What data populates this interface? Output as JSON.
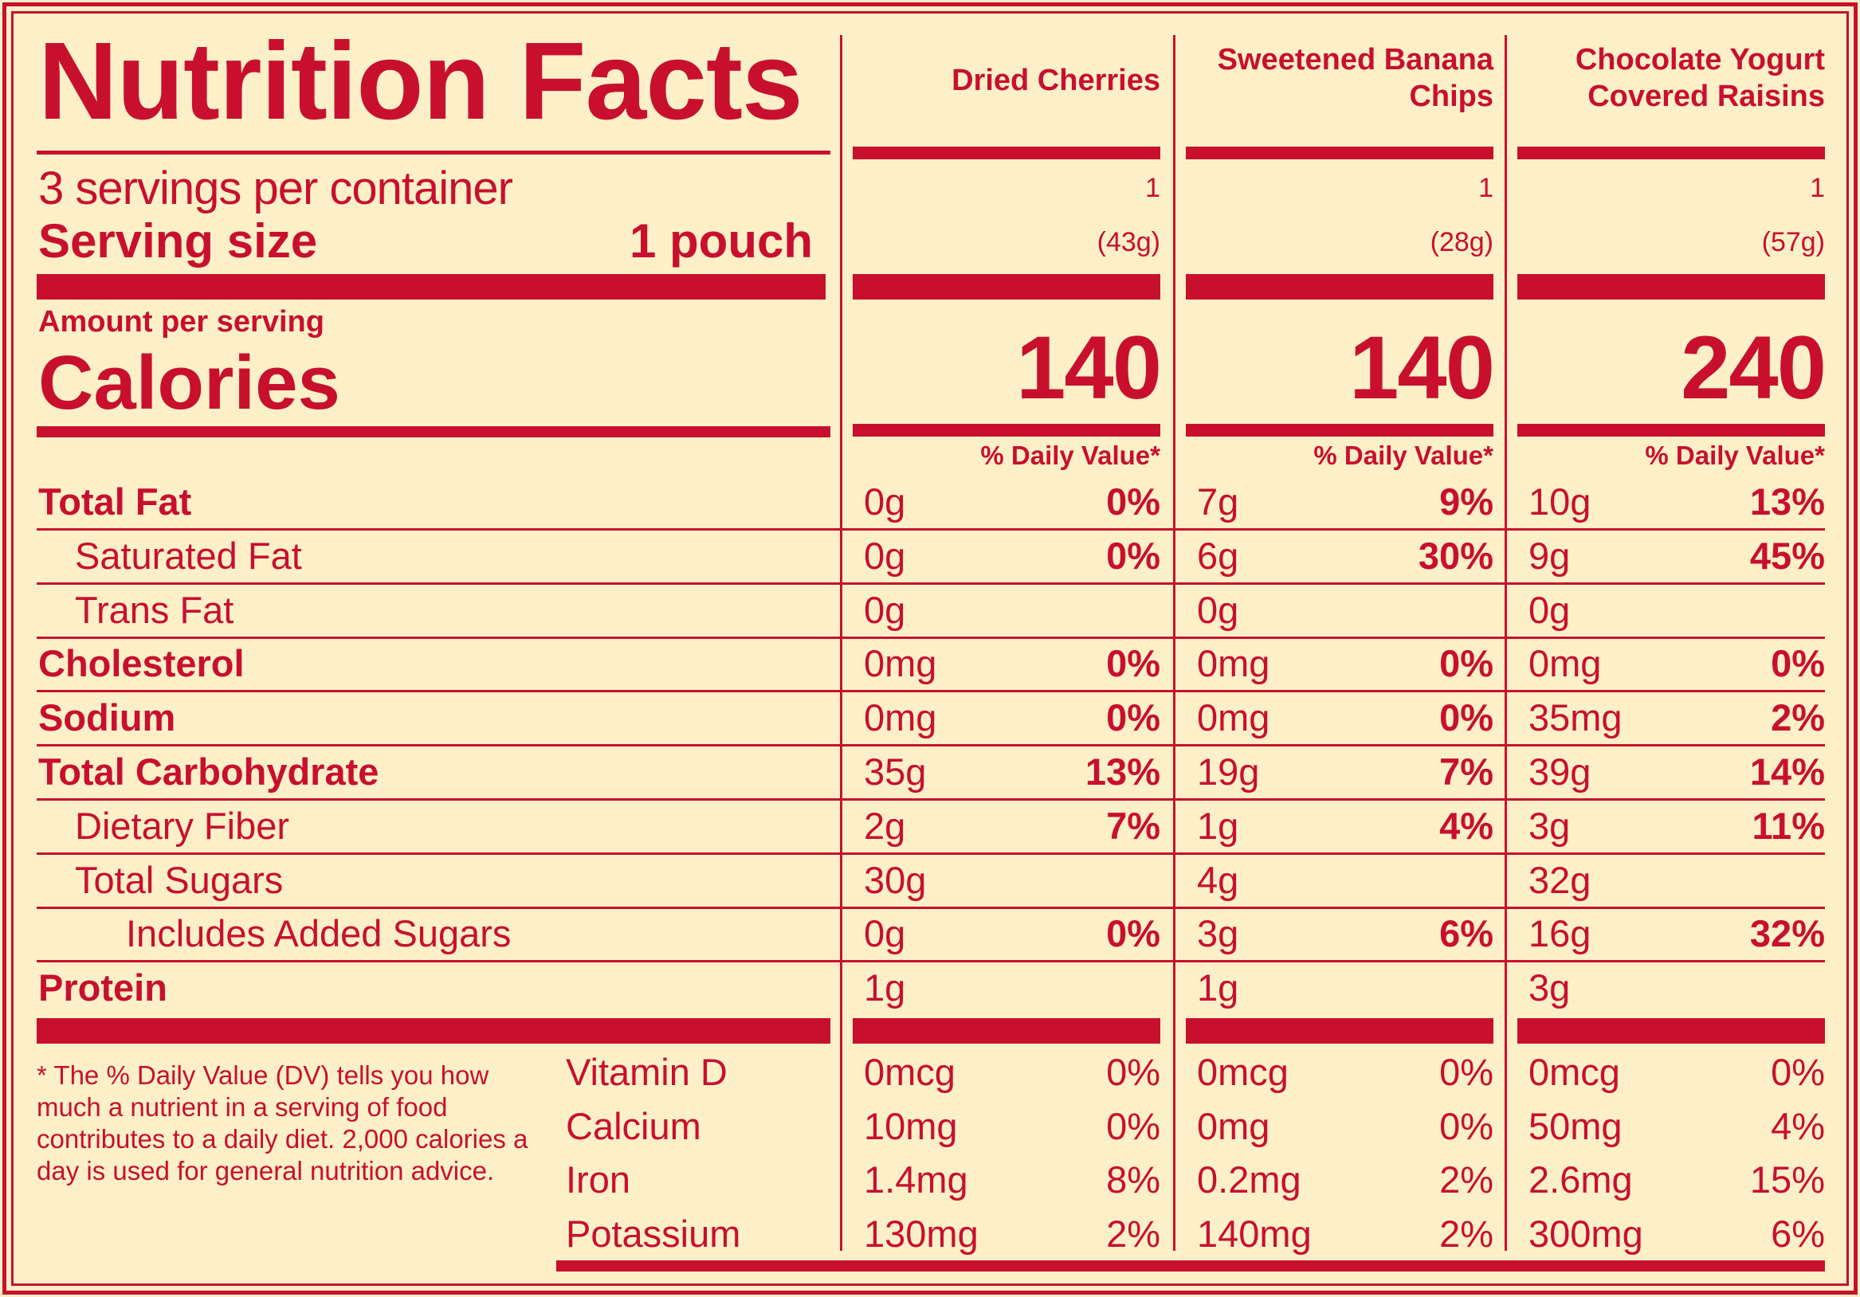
{
  "title": "Nutrition Facts",
  "servings_per_container": "3 servings per container",
  "serving_size_label": "Serving size",
  "serving_size_value": "1 pouch",
  "amount_per_serving": "Amount per serving",
  "calories_label": "Calories",
  "daily_value_header": "% Daily Value*",
  "products": [
    {
      "name": "Dried Cherries",
      "servings": "1",
      "size": "(43g)",
      "calories": "140"
    },
    {
      "name": "Sweetened Banana Chips",
      "servings": "1",
      "size": "(28g)",
      "calories": "140"
    },
    {
      "name": "Chocolate Yogurt Covered Raisins",
      "servings": "1",
      "size": "(57g)",
      "calories": "240"
    }
  ],
  "nutrients": [
    {
      "label": "Total Fat",
      "bold": true,
      "indent": 0,
      "values": [
        {
          "amount": "0g",
          "dv": "0%"
        },
        {
          "amount": "7g",
          "dv": "9%"
        },
        {
          "amount": "10g",
          "dv": "13%"
        }
      ]
    },
    {
      "label": "Saturated Fat",
      "bold": false,
      "indent": 1,
      "values": [
        {
          "amount": "0g",
          "dv": "0%"
        },
        {
          "amount": "6g",
          "dv": "30%"
        },
        {
          "amount": "9g",
          "dv": "45%"
        }
      ]
    },
    {
      "label": "Trans Fat",
      "bold": false,
      "indent": 1,
      "values": [
        {
          "amount": "0g",
          "dv": ""
        },
        {
          "amount": "0g",
          "dv": ""
        },
        {
          "amount": "0g",
          "dv": ""
        }
      ]
    },
    {
      "label": "Cholesterol",
      "bold": true,
      "indent": 0,
      "values": [
        {
          "amount": "0mg",
          "dv": "0%"
        },
        {
          "amount": "0mg",
          "dv": "0%"
        },
        {
          "amount": "0mg",
          "dv": "0%"
        }
      ]
    },
    {
      "label": "Sodium",
      "bold": true,
      "indent": 0,
      "values": [
        {
          "amount": "0mg",
          "dv": "0%"
        },
        {
          "amount": "0mg",
          "dv": "0%"
        },
        {
          "amount": "35mg",
          "dv": "2%"
        }
      ]
    },
    {
      "label": "Total Carbohydrate",
      "bold": true,
      "indent": 0,
      "values": [
        {
          "amount": "35g",
          "dv": "13%"
        },
        {
          "amount": "19g",
          "dv": "7%"
        },
        {
          "amount": "39g",
          "dv": "14%"
        }
      ]
    },
    {
      "label": "Dietary Fiber",
      "bold": false,
      "indent": 1,
      "values": [
        {
          "amount": "2g",
          "dv": "7%"
        },
        {
          "amount": "1g",
          "dv": "4%"
        },
        {
          "amount": "3g",
          "dv": "11%"
        }
      ]
    },
    {
      "label": "Total Sugars",
      "bold": false,
      "indent": 1,
      "values": [
        {
          "amount": "30g",
          "dv": ""
        },
        {
          "amount": "4g",
          "dv": ""
        },
        {
          "amount": "32g",
          "dv": ""
        }
      ]
    },
    {
      "label": "Includes Added Sugars",
      "bold": false,
      "indent": 2,
      "values": [
        {
          "amount": "0g",
          "dv": "0%"
        },
        {
          "amount": "3g",
          "dv": "6%"
        },
        {
          "amount": "16g",
          "dv": "32%"
        }
      ]
    },
    {
      "label": "Protein",
      "bold": true,
      "indent": 0,
      "values": [
        {
          "amount": "1g",
          "dv": ""
        },
        {
          "amount": "1g",
          "dv": ""
        },
        {
          "amount": "3g",
          "dv": ""
        }
      ]
    }
  ],
  "vitamins": [
    {
      "label": "Vitamin D",
      "values": [
        {
          "amount": "0mcg",
          "dv": "0%"
        },
        {
          "amount": "0mcg",
          "dv": "0%"
        },
        {
          "amount": "0mcg",
          "dv": "0%"
        }
      ]
    },
    {
      "label": "Calcium",
      "values": [
        {
          "amount": "10mg",
          "dv": "0%"
        },
        {
          "amount": "0mg",
          "dv": "0%"
        },
        {
          "amount": "50mg",
          "dv": "4%"
        }
      ]
    },
    {
      "label": "Iron",
      "values": [
        {
          "amount": "1.4mg",
          "dv": "8%"
        },
        {
          "amount": "0.2mg",
          "dv": "2%"
        },
        {
          "amount": "2.6mg",
          "dv": "15%"
        }
      ]
    },
    {
      "label": "Potassium",
      "values": [
        {
          "amount": "130mg",
          "dv": "2%"
        },
        {
          "amount": "140mg",
          "dv": "2%"
        },
        {
          "amount": "300mg",
          "dv": "6%"
        }
      ]
    }
  ],
  "footnote": "* The % Daily Value (DV) tells you how much a nutrient in a serving of food contributes to a daily diet. 2,000 calories a day is used for general nutrition advice.",
  "colors": {
    "accent": "#c8102e",
    "background": "#fdf0c9"
  }
}
